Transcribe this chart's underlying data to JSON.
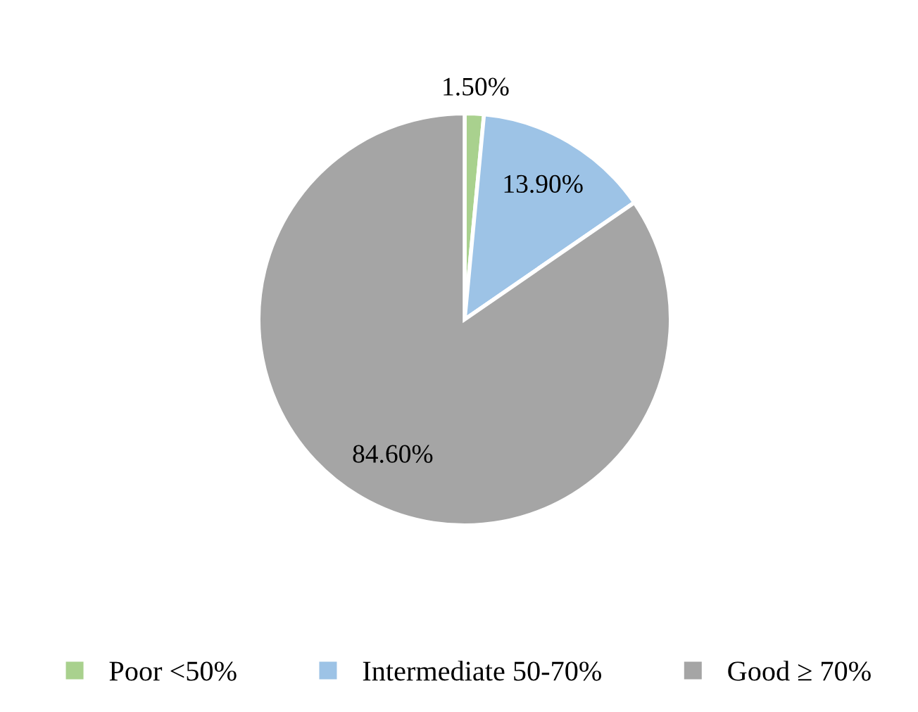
{
  "chart_data": {
    "type": "pie",
    "categories": [
      "Poor <50%",
      "Intermediate 50-70%",
      "Good ≥ 70%"
    ],
    "values": [
      1.5,
      13.9,
      84.6
    ],
    "colors": [
      "#a9d18e",
      "#9dc3e6",
      "#a5a5a5"
    ],
    "value_labels": [
      "1.50%",
      "13.90%",
      "84.60%"
    ],
    "legend": "bottom"
  }
}
